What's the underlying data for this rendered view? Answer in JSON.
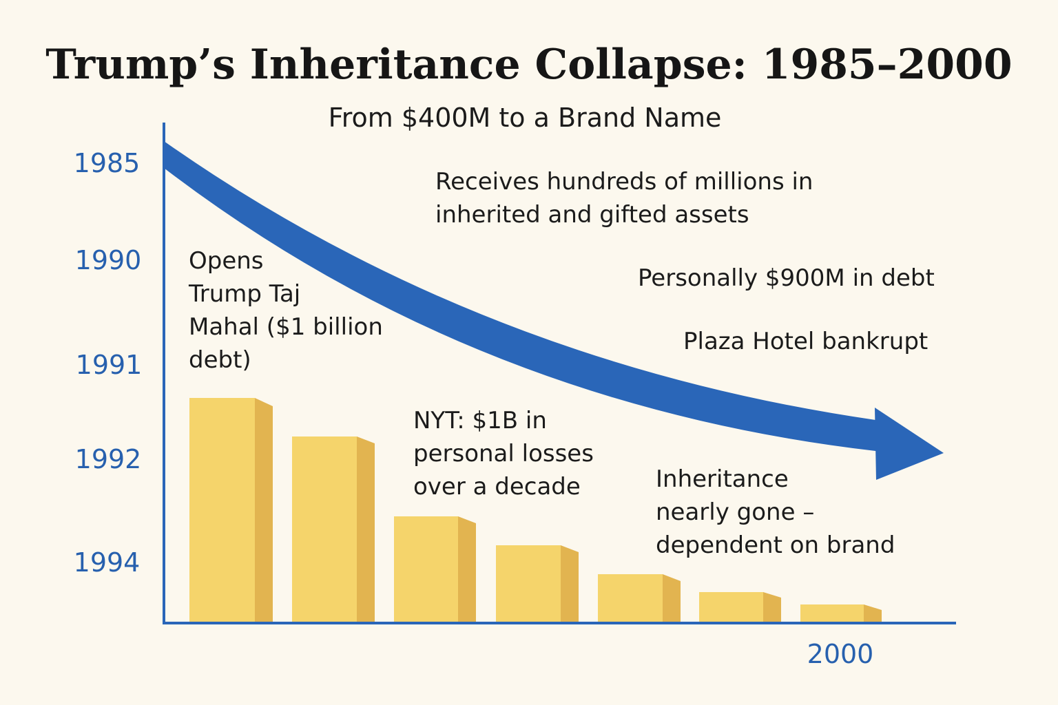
{
  "header": {
    "title": "Trump’s Inheritance Collapse: 1985–2000",
    "subtitle": "From $400M to a Brand Name"
  },
  "years": [
    "1985",
    "1990",
    "1991",
    "1992",
    "1994",
    "2000"
  ],
  "annotations": [
    {
      "lines": [
        "Receives hundreds of millions in",
        "inherited and gifted assets"
      ]
    },
    {
      "lines": [
        "Opens",
        "Trump Taj",
        "Mahal ($1 billion",
        "debt)"
      ]
    },
    {
      "lines": [
        "Personally $900M in debt"
      ]
    },
    {
      "lines": [
        "Plaza Hotel bankrupt"
      ]
    },
    {
      "lines": [
        "NYT: $1B in",
        "personal losses",
        "over a decade"
      ]
    },
    {
      "lines": [
        "Inheritance",
        "nearly gone –",
        "dependent on brand"
      ]
    }
  ]
}
